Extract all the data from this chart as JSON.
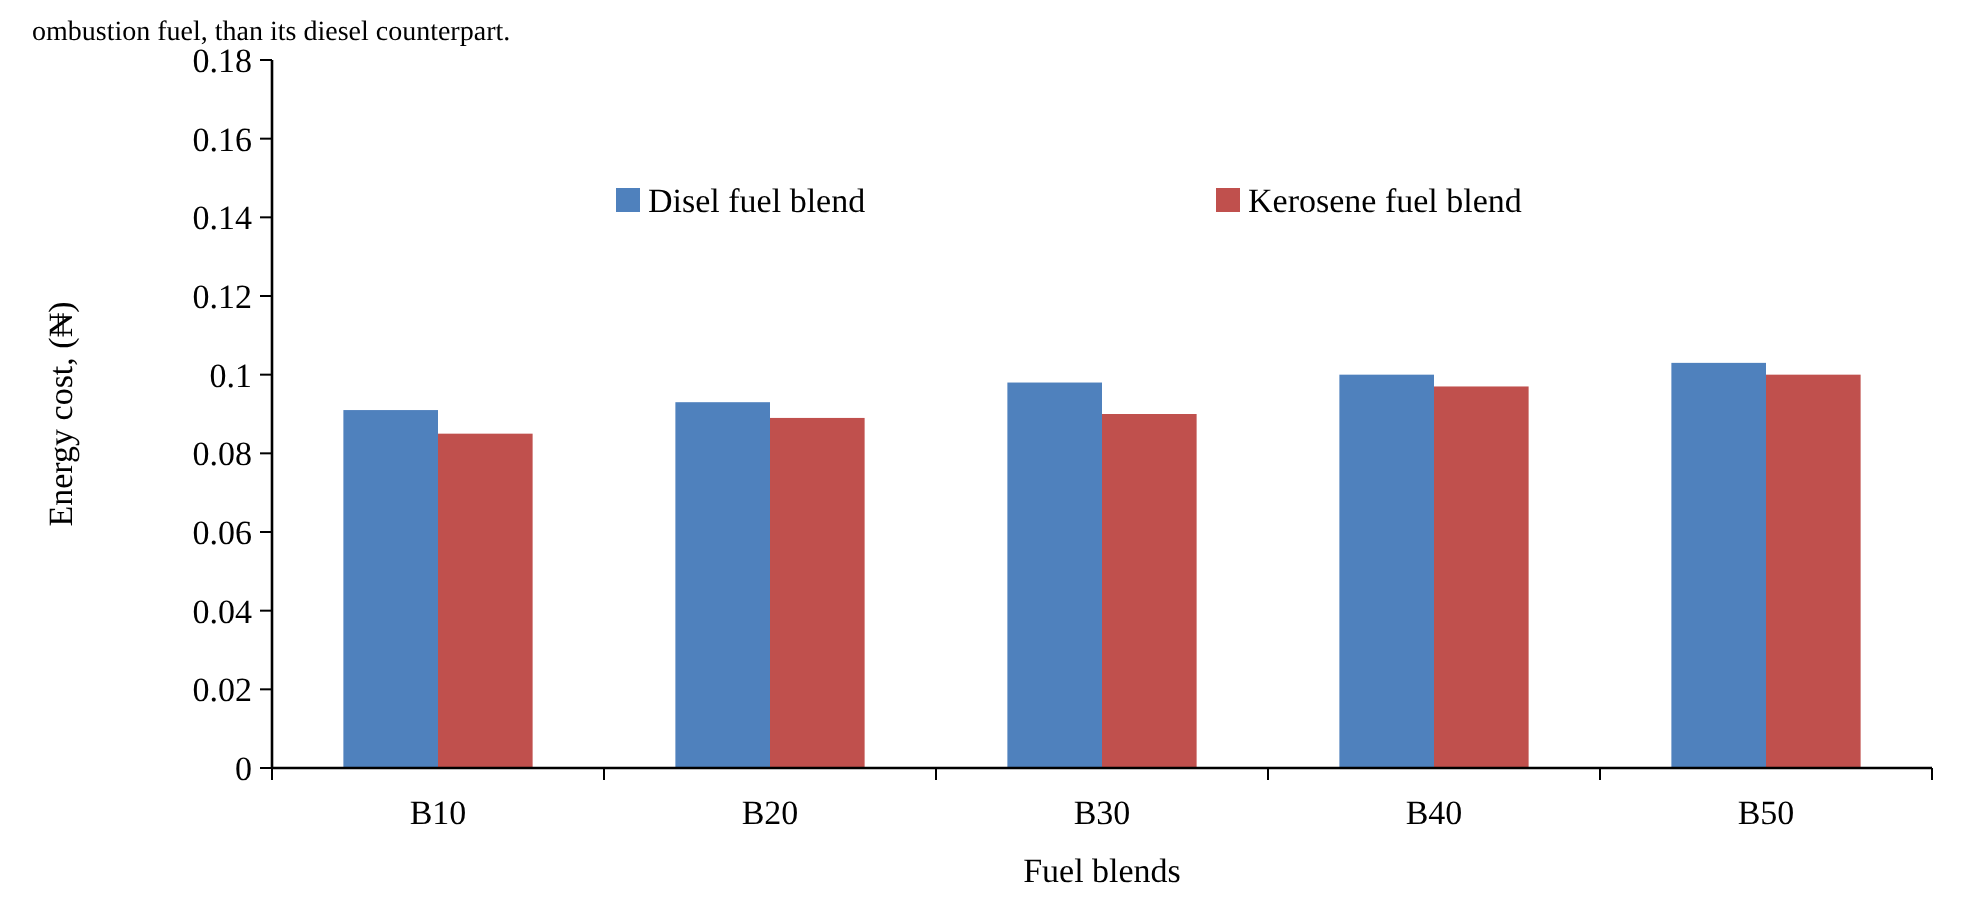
{
  "chart_data": {
    "type": "bar",
    "xlabel": "Fuel blends",
    "ylabel": "Energy cost, (₦)",
    "categories": [
      "B10",
      "B20",
      "B30",
      "B40",
      "B50"
    ],
    "series": [
      {
        "name": "Disel fuel blend",
        "color": "#4f81bd",
        "values": [
          0.091,
          0.093,
          0.098,
          0.1,
          0.103
        ]
      },
      {
        "name": "Kerosene fuel blend",
        "color": "#c0504d",
        "values": [
          0.085,
          0.089,
          0.09,
          0.097,
          0.1
        ]
      }
    ],
    "ylim": [
      0,
      0.18
    ],
    "yticks": [
      0,
      0.02,
      0.04,
      0.06,
      0.08,
      0.1,
      0.12,
      0.14,
      0.16,
      0.18
    ],
    "grid": false,
    "legend": "top",
    "annotations": [
      "ombustion fuel, than its diesel counterpart."
    ]
  }
}
